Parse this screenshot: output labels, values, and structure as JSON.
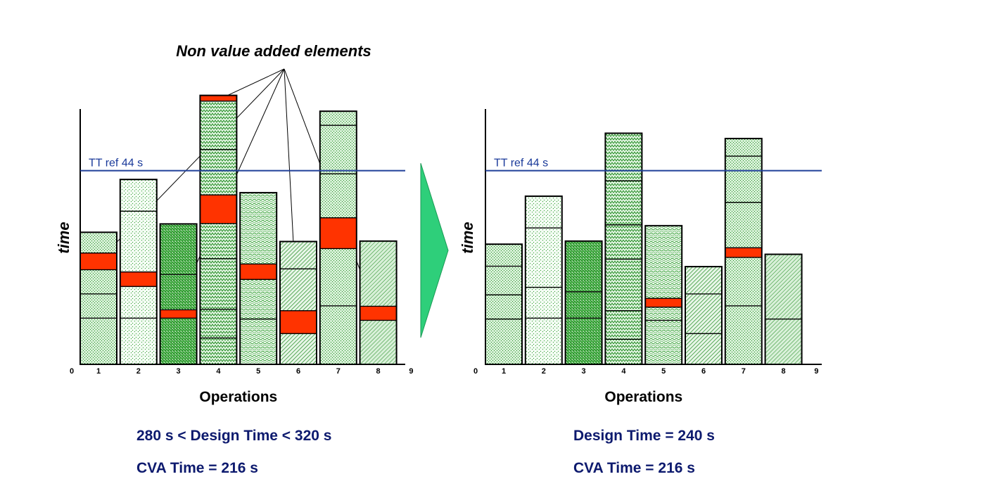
{
  "annotation": {
    "text": "Non value added elements"
  },
  "colors": {
    "nva": "#ff3300",
    "green": "#1f8a1f",
    "takt": "#1f3f99",
    "arrow": "#2ecf7a",
    "summary": "#0d1a6e"
  },
  "chart_data": [
    {
      "type": "bar",
      "subtype": "stacked",
      "xlabel": "Operations",
      "ylabel": "time",
      "x_ticks": [
        "0",
        "1",
        "2",
        "3",
        "4",
        "5",
        "6",
        "7",
        "8",
        "9"
      ],
      "xlim": [
        0,
        9
      ],
      "ylim": [
        0,
        60
      ],
      "takt_line": {
        "label": "TT ref 44 s",
        "value": 44
      },
      "summary": [
        "280 s < Design Time < 320 s",
        "CVA Time = 216 s"
      ],
      "bars": [
        {
          "x": 1,
          "pattern": "dots-dense",
          "segments": [
            {
              "value": 10.5,
              "nva": false
            },
            {
              "value": 5.5,
              "nva": false
            },
            {
              "value": 5.5,
              "nva": false
            },
            {
              "value": 3.8,
              "nva": true
            },
            {
              "value": 4.7,
              "nva": false
            }
          ]
        },
        {
          "x": 2,
          "pattern": "dots-sparse",
          "segments": [
            {
              "value": 10.5,
              "nva": false
            },
            {
              "value": 7.2,
              "nva": false
            },
            {
              "value": 3.3,
              "nva": true
            },
            {
              "value": 13.8,
              "nva": false
            },
            {
              "value": 7.2,
              "nva": false
            }
          ]
        },
        {
          "x": 3,
          "pattern": "dots-bold",
          "segments": [
            {
              "value": 10.5,
              "nva": false
            },
            {
              "value": 1.9,
              "nva": true
            },
            {
              "value": 8,
              "nva": false
            },
            {
              "value": 11.5,
              "nva": false
            }
          ]
        },
        {
          "x": 4,
          "pattern": "zigzag",
          "segments": [
            {
              "value": 6,
              "nva": false
            },
            {
              "value": 6.5,
              "nva": false
            },
            {
              "value": 11.5,
              "nva": false
            },
            {
              "value": 8,
              "nva": false
            },
            {
              "value": 6.5,
              "nva": true
            },
            {
              "value": 10.3,
              "nva": false
            },
            {
              "value": 11,
              "nva": false
            },
            {
              "value": 1.3,
              "nva": true
            }
          ]
        },
        {
          "x": 5,
          "pattern": "wave",
          "segments": [
            {
              "value": 10.3,
              "nva": false
            },
            {
              "value": 9,
              "nva": false
            },
            {
              "value": 3.5,
              "nva": true
            },
            {
              "value": 16.2,
              "nva": false
            }
          ]
        },
        {
          "x": 6,
          "pattern": "hatch-dense",
          "segments": [
            {
              "value": 7,
              "nva": false
            },
            {
              "value": 5.2,
              "nva": true
            },
            {
              "value": 9.5,
              "nva": false
            },
            {
              "value": 6.2,
              "nva": false
            }
          ]
        },
        {
          "x": 7,
          "pattern": "dots-dense",
          "segments": [
            {
              "value": 13.3,
              "nva": false
            },
            {
              "value": 13,
              "nva": false
            },
            {
              "value": 7,
              "nva": true
            },
            {
              "value": 10,
              "nva": false
            },
            {
              "value": 11,
              "nva": false
            },
            {
              "value": 3.2,
              "nva": false
            }
          ]
        },
        {
          "x": 8,
          "pattern": "hatch",
          "segments": [
            {
              "value": 10,
              "nva": false
            },
            {
              "value": 3.2,
              "nva": true
            },
            {
              "value": 14.8,
              "nva": false
            }
          ]
        }
      ]
    },
    {
      "type": "bar",
      "subtype": "stacked",
      "xlabel": "Operations",
      "ylabel": "time",
      "x_ticks": [
        "0",
        "1",
        "2",
        "3",
        "4",
        "5",
        "6",
        "7",
        "8",
        "9"
      ],
      "xlim": [
        0,
        9
      ],
      "ylim": [
        0,
        60
      ],
      "takt_line": {
        "label": "TT ref 44 s",
        "value": 44
      },
      "summary": [
        "Design Time = 240 s",
        "CVA Time = 216 s"
      ],
      "bars": [
        {
          "x": 1,
          "pattern": "dots-dense",
          "segments": [
            {
              "value": 10.3,
              "nva": false
            },
            {
              "value": 5.5,
              "nva": false
            },
            {
              "value": 6.5,
              "nva": false
            },
            {
              "value": 5,
              "nva": false
            }
          ]
        },
        {
          "x": 2,
          "pattern": "dots-sparse",
          "segments": [
            {
              "value": 10.5,
              "nva": false
            },
            {
              "value": 7,
              "nva": false
            },
            {
              "value": 13.5,
              "nva": false
            },
            {
              "value": 7.2,
              "nva": false
            }
          ]
        },
        {
          "x": 3,
          "pattern": "dots-bold",
          "segments": [
            {
              "value": 10.5,
              "nva": false
            },
            {
              "value": 6,
              "nva": false
            },
            {
              "value": 11.5,
              "nva": false
            }
          ]
        },
        {
          "x": 4,
          "pattern": "zigzag",
          "segments": [
            {
              "value": 5.7,
              "nva": false
            },
            {
              "value": 6.5,
              "nva": false
            },
            {
              "value": 11.7,
              "nva": false
            },
            {
              "value": 7.8,
              "nva": false
            },
            {
              "value": 10,
              "nva": false
            },
            {
              "value": 10.8,
              "nva": false
            }
          ]
        },
        {
          "x": 5,
          "pattern": "wave",
          "segments": [
            {
              "value": 10,
              "nva": false
            },
            {
              "value": 3,
              "nva": false
            },
            {
              "value": 2,
              "nva": true
            },
            {
              "value": 16.5,
              "nva": false
            }
          ]
        },
        {
          "x": 6,
          "pattern": "hatch-dense",
          "segments": [
            {
              "value": 7,
              "nva": false
            },
            {
              "value": 9,
              "nva": false
            },
            {
              "value": 6.2,
              "nva": false
            }
          ]
        },
        {
          "x": 7,
          "pattern": "dots-dense",
          "segments": [
            {
              "value": 13.3,
              "nva": false
            },
            {
              "value": 11,
              "nva": false
            },
            {
              "value": 2.2,
              "nva": true
            },
            {
              "value": 10.3,
              "nva": false
            },
            {
              "value": 10.5,
              "nva": false
            },
            {
              "value": 4,
              "nva": false
            }
          ]
        },
        {
          "x": 8,
          "pattern": "hatch",
          "segments": [
            {
              "value": 10.3,
              "nva": false
            },
            {
              "value": 14.7,
              "nva": false
            }
          ]
        }
      ]
    }
  ]
}
